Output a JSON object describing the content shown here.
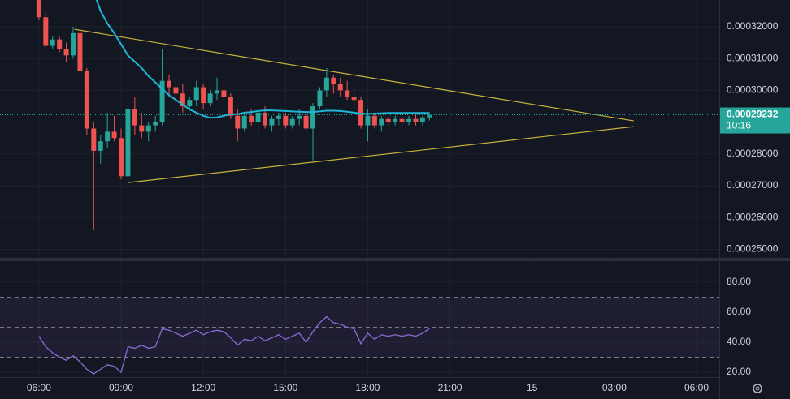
{
  "chart_data": [
    {
      "type": "candlestick",
      "x": [
        6,
        6.25,
        6.5,
        6.75,
        7,
        7.25,
        7.5,
        7.75,
        8,
        8.25,
        8.5,
        8.75,
        9,
        9.25,
        9.5,
        9.75,
        10,
        10.25,
        10.5,
        10.75,
        11,
        11.25,
        11.5,
        11.75,
        12,
        12.25,
        12.5,
        12.75,
        13,
        13.25,
        13.5,
        13.75,
        14,
        14.25,
        14.5,
        14.75,
        15,
        15.25,
        15.5,
        15.75,
        16,
        16.25,
        16.5,
        16.75,
        17,
        17.25,
        17.5,
        17.75,
        18,
        18.25,
        18.5,
        18.75,
        19,
        19.25,
        19.5,
        19.75,
        20,
        20.25
      ],
      "open": [
        0.000329,
        0.000323,
        0.000314,
        0.000316,
        0.000313,
        0.000311,
        0.000318,
        0.000306,
        0.000288,
        0.000281,
        0.000284,
        0.000287,
        0.000285,
        0.000273,
        0.000294,
        0.000289,
        0.000287,
        0.000289,
        0.00029,
        0.000303,
        0.000301,
        0.000299,
        0.000295,
        0.000297,
        0.000301,
        0.000296,
        0.000299,
        0.0003,
        0.000298,
        0.000292,
        0.000288,
        0.000292,
        0.00029,
        0.000293,
        0.000289,
        0.000291,
        0.000292,
        0.000289,
        0.000291,
        0.000292,
        0.000288,
        0.000295,
        0.0003,
        0.000304,
        0.000302,
        0.0003,
        0.000298,
        0.000297,
        0.000289,
        0.000292,
        0.000289,
        0.000291,
        0.00029,
        0.000291,
        0.00029,
        0.000291,
        0.00029,
        0.0002915
      ],
      "high": [
        0.000332,
        0.000325,
        0.000317,
        0.000317,
        0.000315,
        0.00032,
        0.000319,
        0.000307,
        0.00029,
        0.000286,
        0.000293,
        0.000292,
        0.000288,
        0.000295,
        0.000298,
        0.000293,
        0.00029,
        0.000292,
        0.000313,
        0.000305,
        0.000304,
        0.000302,
        0.000298,
        0.000303,
        0.000302,
        0.0003,
        0.000304,
        0.000302,
        0.000299,
        0.000294,
        0.000293,
        0.000294,
        0.000294,
        0.000295,
        0.000292,
        0.000293,
        0.000293,
        0.000292,
        0.000294,
        0.000293,
        0.000296,
        0.000301,
        0.000307,
        0.000305,
        0.000304,
        0.000303,
        0.000301,
        0.000298,
        0.000294,
        0.000293,
        0.000292,
        0.000292,
        0.000292,
        0.000292,
        0.000292,
        0.000293,
        0.000292,
        0.000293
      ],
      "low": [
        0.000322,
        0.000313,
        0.000313,
        0.000312,
        0.000309,
        0.00031,
        0.000305,
        0.000286,
        0.000256,
        0.000277,
        0.000282,
        0.000284,
        0.000272,
        0.000272,
        0.000286,
        0.000285,
        0.000284,
        0.000287,
        0.000289,
        0.000298,
        0.000296,
        0.000293,
        0.000294,
        0.000295,
        0.000294,
        0.000295,
        0.000297,
        0.000297,
        0.000291,
        0.000284,
        0.000287,
        0.000289,
        0.000286,
        0.000288,
        0.000287,
        0.000289,
        0.000288,
        0.000288,
        0.000289,
        0.000286,
        0.000278,
        0.000294,
        0.000298,
        0.000299,
        0.000298,
        0.000297,
        0.000295,
        0.000288,
        0.000284,
        0.000288,
        0.000287,
        0.000289,
        0.000289,
        0.000289,
        0.000289,
        0.000289,
        0.000289,
        0.0002905
      ],
      "close": [
        0.000323,
        0.000314,
        0.000316,
        0.000313,
        0.000311,
        0.000318,
        0.000306,
        0.000288,
        0.000281,
        0.000284,
        0.000287,
        0.000285,
        0.000273,
        0.000294,
        0.000289,
        0.000287,
        0.000289,
        0.00029,
        0.000303,
        0.000301,
        0.000299,
        0.000295,
        0.000297,
        0.000301,
        0.000296,
        0.000299,
        0.0003,
        0.000298,
        0.000292,
        0.000288,
        0.000292,
        0.00029,
        0.000293,
        0.000289,
        0.000291,
        0.000292,
        0.000289,
        0.000291,
        0.000292,
        0.000288,
        0.000295,
        0.0003,
        0.000304,
        0.000302,
        0.0003,
        0.000298,
        0.000297,
        0.000289,
        0.000292,
        0.000289,
        0.000291,
        0.00029,
        0.000291,
        0.00029,
        0.000291,
        0.00029,
        0.0002915,
        0.00029232
      ],
      "up_color": "#26a69a",
      "down_color": "#ef5350",
      "ma": {
        "color": "#1fb6d8",
        "values": [
          null,
          null,
          null,
          null,
          null,
          null,
          null,
          null,
          0.000331,
          0.000325,
          0.000321,
          0.000318,
          0.0003145,
          0.000311,
          0.000309,
          0.000307,
          0.0003045,
          0.0003025,
          0.0003005,
          0.0002985,
          0.000297,
          0.0002955,
          0.000294,
          0.000293,
          0.000292,
          0.0002914,
          0.0002915,
          0.000292,
          0.0002925,
          0.0002925,
          0.000293,
          0.0002932,
          0.0002935,
          0.0002937,
          0.0002937,
          0.0002936,
          0.0002935,
          0.0002934,
          0.0002933,
          0.0002932,
          0.0002932,
          0.0002934,
          0.0002936,
          0.0002936,
          0.0002935,
          0.0002933,
          0.000293,
          0.0002927,
          0.0002926,
          0.0002927,
          0.0002928,
          0.0002929,
          0.0002929,
          0.0002929,
          0.0002929,
          0.0002929,
          0.0002929,
          0.0002929
        ]
      },
      "trendlines": [
        {
          "color": "#c9b33c",
          "points": [
            [
              7.3,
              0.0003192
            ],
            [
              27.71,
              0.0002904
            ]
          ]
        },
        {
          "color": "#c9b33c",
          "points": [
            [
              9.26,
              0.000271
            ],
            [
              27.71,
              0.0002886
            ]
          ]
        }
      ],
      "last_price": 0.00029232,
      "countdown": "10:16",
      "last_color": "#26a69a",
      "xlim": [
        4.58,
        30.83
      ],
      "ylim": [
        0.00024732,
        0.00032842
      ],
      "yticks": [
        {
          "value": 0.00032,
          "label": "0.00032000"
        },
        {
          "value": 0.00031,
          "label": "0.00031000"
        },
        {
          "value": 0.0003,
          "label": "0.00030000"
        },
        {
          "value": 0.00028,
          "label": "0.00028000"
        },
        {
          "value": 0.00027,
          "label": "0.00027000"
        },
        {
          "value": 0.00026,
          "label": "0.00026000"
        },
        {
          "value": 0.00025,
          "label": "0.00025000"
        }
      ],
      "xticks": [
        {
          "value": 6,
          "label": "06:00"
        },
        {
          "value": 9,
          "label": "09:00"
        },
        {
          "value": 12,
          "label": "12:00"
        },
        {
          "value": 15,
          "label": "15:00"
        },
        {
          "value": 18,
          "label": "18:00"
        },
        {
          "value": 21,
          "label": "21:00"
        },
        {
          "value": 24,
          "label": "15"
        },
        {
          "value": 27,
          "label": "03:00"
        },
        {
          "value": 30,
          "label": "06:00"
        }
      ],
      "grid": true
    },
    {
      "type": "line",
      "values": [
        44,
        37,
        33,
        30,
        28,
        31,
        27,
        22,
        19,
        22,
        25,
        24,
        20,
        37,
        36,
        38,
        36,
        37,
        49,
        48,
        46,
        44,
        46,
        48,
        45,
        47,
        48,
        47,
        43,
        38,
        42,
        41,
        44,
        41,
        43,
        45,
        42,
        44,
        46,
        40,
        47,
        53,
        57,
        53,
        52,
        50,
        49,
        39,
        46,
        42,
        45,
        44,
        45,
        44,
        45,
        44,
        46,
        49
      ],
      "color": "#8e6bd6",
      "levels": [
        70,
        50,
        30
      ],
      "band_color": "#7e57c2",
      "ylim": [
        16.8,
        94
      ],
      "yticks": [
        {
          "value": 80,
          "label": "80.00"
        },
        {
          "value": 60,
          "label": "60.00"
        },
        {
          "value": 40,
          "label": "40.00"
        },
        {
          "value": 20,
          "label": "20.00"
        }
      ],
      "grid": true
    }
  ]
}
